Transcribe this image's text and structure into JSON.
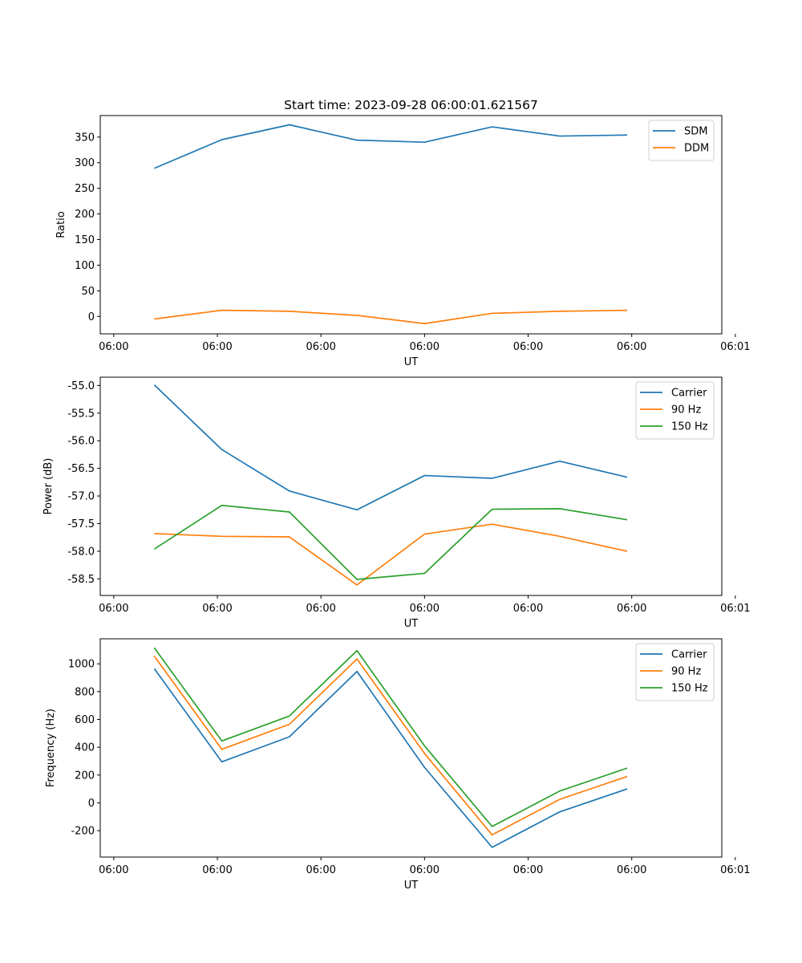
{
  "figure": {
    "title": "Start time: 2023-09-28 06:00:01.621567"
  },
  "chart_data": [
    {
      "type": "line",
      "title": "Start time: 2023-09-28 06:00:01.621567",
      "xlabel": "UT",
      "ylabel": "Ratio",
      "x": [
        1,
        2,
        3,
        4,
        5,
        6,
        7,
        8
      ],
      "xlim": [
        0.2,
        9.4
      ],
      "xticks": [
        0.4,
        1.933,
        3.467,
        5.0,
        6.533,
        8.067,
        9.6
      ],
      "xtick_labels": [
        "06:00",
        "06:00",
        "06:00",
        "06:00",
        "06:00",
        "06:00",
        "06:01"
      ],
      "ylim": [
        -34,
        392
      ],
      "yticks": [
        0,
        50,
        100,
        150,
        200,
        250,
        300,
        350
      ],
      "ytick_labels": [
        "0",
        "50",
        "100",
        "150",
        "200",
        "250",
        "300",
        "350"
      ],
      "grid": false,
      "legend_position": "top-right",
      "series": [
        {
          "name": "SDM",
          "color": "#1f77b4",
          "values": [
            289,
            345,
            374,
            344,
            340,
            370,
            352,
            354
          ]
        },
        {
          "name": "DDM",
          "color": "#ff7f0e",
          "values": [
            -5,
            12,
            10,
            2,
            -14,
            6,
            10,
            12
          ]
        }
      ]
    },
    {
      "type": "line",
      "title": "",
      "xlabel": "UT",
      "ylabel": "Power (dB)",
      "x": [
        1,
        2,
        3,
        4,
        5,
        6,
        7,
        8
      ],
      "xlim": [
        0.2,
        9.4
      ],
      "xticks": [
        0.4,
        1.933,
        3.467,
        5.0,
        6.533,
        8.067,
        9.6
      ],
      "xtick_labels": [
        "06:00",
        "06:00",
        "06:00",
        "06:00",
        "06:00",
        "06:00",
        "06:01"
      ],
      "ylim": [
        -58.8,
        -54.85
      ],
      "yticks": [
        -58.5,
        -58.0,
        -57.5,
        -57.0,
        -56.5,
        -56.0,
        -55.5,
        -55.0
      ],
      "ytick_labels": [
        "-58.5",
        "-58.0",
        "-57.5",
        "-57.0",
        "-56.5",
        "-56.0",
        "-55.5",
        "-55.0"
      ],
      "grid": false,
      "legend_position": "top-right",
      "series": [
        {
          "name": "Carrier",
          "color": "#1f77b4",
          "values": [
            -54.99,
            -56.16,
            -56.91,
            -57.25,
            -56.63,
            -56.68,
            -56.37,
            -56.66
          ]
        },
        {
          "name": "90 Hz",
          "color": "#ff7f0e",
          "values": [
            -57.68,
            -57.73,
            -57.74,
            -58.61,
            -57.69,
            -57.51,
            -57.73,
            -58.0
          ]
        },
        {
          "name": "150 Hz",
          "color": "#2ca02c",
          "values": [
            -57.96,
            -57.17,
            -57.29,
            -58.51,
            -58.4,
            -57.24,
            -57.23,
            -57.43
          ]
        }
      ]
    },
    {
      "type": "line",
      "title": "",
      "xlabel": "UT",
      "ylabel": "Frequency (Hz)",
      "x": [
        1,
        2,
        3,
        4,
        5,
        6,
        7,
        8
      ],
      "xlim": [
        0.2,
        9.4
      ],
      "xticks": [
        0.4,
        1.933,
        3.467,
        5.0,
        6.533,
        8.067,
        9.6
      ],
      "xtick_labels": [
        "06:00",
        "06:00",
        "06:00",
        "06:00",
        "06:00",
        "06:00",
        "06:01"
      ],
      "ylim": [
        -390,
        1180
      ],
      "yticks": [
        -200,
        0,
        200,
        400,
        600,
        800,
        1000
      ],
      "ytick_labels": [
        "-200",
        "0",
        "200",
        "400",
        "600",
        "800",
        "1000"
      ],
      "grid": false,
      "legend_position": "top-right",
      "series": [
        {
          "name": "Carrier",
          "color": "#1f77b4",
          "values": [
            965,
            295,
            475,
            945,
            255,
            -320,
            -65,
            100
          ]
        },
        {
          "name": "90 Hz",
          "color": "#ff7f0e",
          "values": [
            1055,
            385,
            565,
            1035,
            355,
            -230,
            25,
            190
          ]
        },
        {
          "name": "150 Hz",
          "color": "#2ca02c",
          "values": [
            1115,
            445,
            625,
            1095,
            410,
            -170,
            85,
            250
          ]
        }
      ]
    }
  ]
}
